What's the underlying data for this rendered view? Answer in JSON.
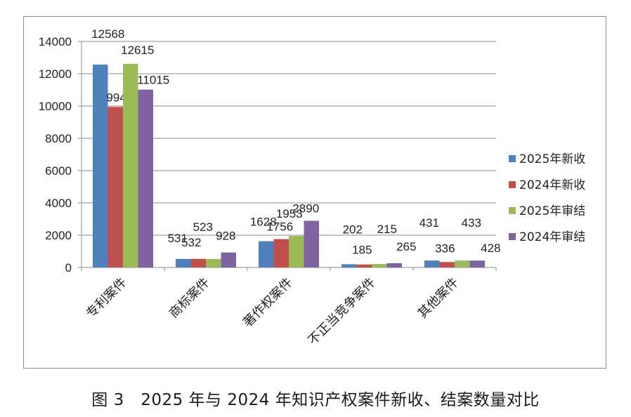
{
  "caption": "图 3　2025 年与 2024 年知识产权案件新收、结案数量对比",
  "chart_data": {
    "type": "bar",
    "title": "",
    "xlabel": "",
    "ylabel": "",
    "ylim": [
      0,
      14000
    ],
    "yticks": [
      0,
      2000,
      4000,
      6000,
      8000,
      10000,
      12000,
      14000
    ],
    "grid": true,
    "legend_position": "right",
    "categories": [
      "专利案件",
      "商标案件",
      "著作权案件",
      "不正当竞争案件",
      "其他案件"
    ],
    "series": [
      {
        "name": "2025年新收",
        "color": "#4f81bd",
        "values": [
          12568,
          531,
          1628,
          202,
          431
        ]
      },
      {
        "name": "2024年新收",
        "color": "#c0504d",
        "values": [
          9944,
          532,
          1756,
          185,
          336
        ]
      },
      {
        "name": "2025年审结",
        "color": "#9bbb59",
        "values": [
          12615,
          523,
          1953,
          215,
          433
        ]
      },
      {
        "name": "2024年审结",
        "color": "#8064a2",
        "values": [
          11015,
          928,
          2890,
          265,
          428
        ]
      }
    ]
  }
}
